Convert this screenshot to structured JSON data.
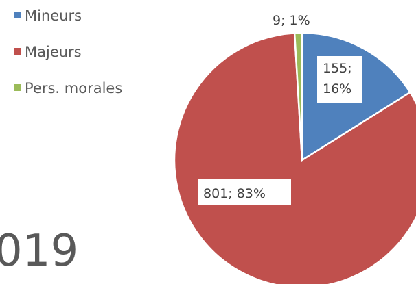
{
  "chart_data": {
    "type": "pie",
    "categories": [
      "Mineurs",
      "Majeurs",
      "Pers. morales"
    ],
    "values": [
      155,
      801,
      9
    ],
    "value_labels": [
      "155; 16%",
      "801; 83%",
      "9; 1%"
    ],
    "colors": [
      "#4f81bd",
      "#c0504d",
      "#9bbb59"
    ],
    "legend": "top-left",
    "annotations": [
      "019"
    ]
  }
}
